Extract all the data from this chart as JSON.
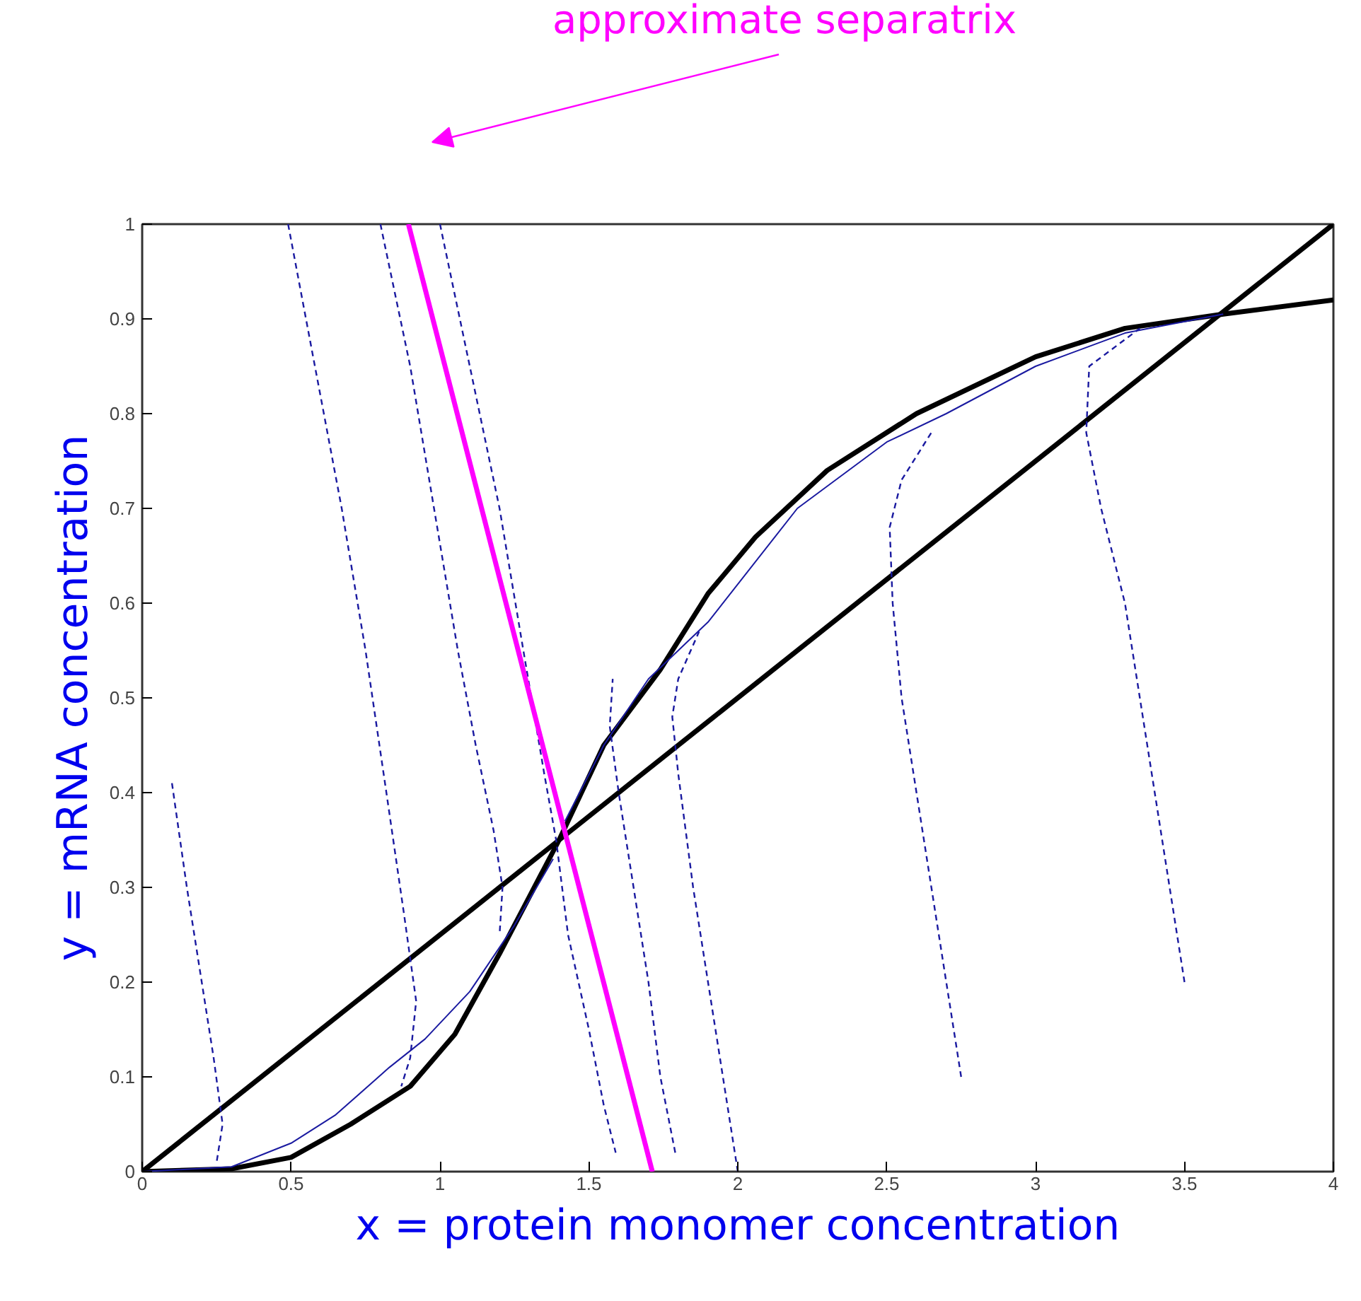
{
  "chart_data": {
    "type": "line",
    "xlabel": "x = protein monomer concentration",
    "ylabel": "y = mRNA concentration",
    "xlim": [
      0,
      4
    ],
    "ylim": [
      0,
      1
    ],
    "xticks": [
      0,
      0.5,
      1,
      1.5,
      2,
      2.5,
      3,
      3.5,
      4
    ],
    "yticks": [
      0,
      0.1,
      0.2,
      0.3,
      0.4,
      0.5,
      0.6,
      0.7,
      0.8,
      0.9,
      1
    ],
    "grid": false,
    "marker": "none",
    "annotations": [
      "approximate separatrix"
    ],
    "series": [
      {
        "color": "#000000",
        "line_style": "solid",
        "x": [
          0,
          4
        ],
        "values": [
          0,
          1
        ]
      },
      {
        "color": "#000000",
        "line_style": "solid",
        "x": [
          0,
          0.3,
          0.5,
          0.7,
          0.9,
          1.05,
          1.2,
          1.4,
          1.55,
          1.74,
          1.9,
          2.06,
          2.3,
          2.6,
          3.0,
          3.3,
          3.63,
          4.0
        ],
        "values": [
          0,
          0.003,
          0.015,
          0.05,
          0.09,
          0.145,
          0.23,
          0.35,
          0.45,
          0.53,
          0.61,
          0.67,
          0.74,
          0.8,
          0.86,
          0.89,
          0.905,
          0.92
        ]
      },
      {
        "color": "#1a1aa0",
        "line_style": "solid",
        "x": [
          1.38,
          1.25,
          1.1,
          0.95,
          0.83,
          0.65,
          0.5,
          0.3,
          0
        ],
        "values": [
          0.33,
          0.26,
          0.19,
          0.14,
          0.11,
          0.06,
          0.03,
          0.005,
          0
        ]
      },
      {
        "color": "#1a1aa0",
        "line_style": "solid",
        "x": [
          1.42,
          1.55,
          1.7,
          1.9,
          2.2,
          2.5,
          2.7,
          3.0,
          3.3,
          3.63
        ],
        "values": [
          0.37,
          0.45,
          0.52,
          0.58,
          0.7,
          0.77,
          0.8,
          0.85,
          0.885,
          0.905
        ]
      },
      {
        "color": "#1a1aa0",
        "line_style": "dashed",
        "x": [
          0.1,
          0.15,
          0.2,
          0.24,
          0.27,
          0.25
        ],
        "values": [
          0.41,
          0.3,
          0.2,
          0.12,
          0.05,
          0.01
        ]
      },
      {
        "color": "#1a1aa0",
        "line_style": "dashed",
        "x": [
          0.49,
          0.58,
          0.67,
          0.75,
          0.82,
          0.88,
          0.92,
          0.9,
          0.87
        ],
        "values": [
          1,
          0.85,
          0.7,
          0.55,
          0.4,
          0.27,
          0.18,
          0.12,
          0.09
        ]
      },
      {
        "color": "#1a1aa0",
        "line_style": "dashed",
        "x": [
          0.8,
          0.9,
          0.98,
          1.06,
          1.12,
          1.18,
          1.21,
          1.2
        ],
        "values": [
          1,
          0.85,
          0.7,
          0.55,
          0.45,
          0.36,
          0.3,
          0.25
        ]
      },
      {
        "color": "#1a1aa0",
        "line_style": "dashed",
        "x": [
          1.0,
          1.1,
          1.2,
          1.28,
          1.35,
          1.39,
          1.43,
          1.5,
          1.55,
          1.59
        ],
        "values": [
          1,
          0.85,
          0.7,
          0.55,
          0.42,
          0.35,
          0.25,
          0.15,
          0.07,
          0.02
        ]
      },
      {
        "color": "#1a1aa0",
        "line_style": "dashed",
        "x": [
          1.79,
          1.74,
          1.7,
          1.65,
          1.6,
          1.57,
          1.58
        ],
        "values": [
          0.02,
          0.1,
          0.2,
          0.3,
          0.4,
          0.47,
          0.52
        ]
      },
      {
        "color": "#1a1aa0",
        "line_style": "dashed",
        "x": [
          2.0,
          1.95,
          1.9,
          1.85,
          1.8,
          1.78,
          1.8,
          1.87
        ],
        "values": [
          0,
          0.1,
          0.2,
          0.3,
          0.42,
          0.48,
          0.52,
          0.57
        ]
      },
      {
        "color": "#1a1aa0",
        "line_style": "dashed",
        "x": [
          2.75,
          2.7,
          2.65,
          2.6,
          2.55,
          2.52,
          2.51,
          2.55,
          2.65
        ],
        "values": [
          0.1,
          0.2,
          0.3,
          0.4,
          0.5,
          0.6,
          0.68,
          0.73,
          0.78
        ]
      },
      {
        "color": "#1a1aa0",
        "line_style": "dashed",
        "x": [
          3.5,
          3.45,
          3.4,
          3.35,
          3.3,
          3.22,
          3.17,
          3.18,
          3.35
        ],
        "values": [
          0.2,
          0.3,
          0.4,
          0.5,
          0.6,
          0.7,
          0.78,
          0.85,
          0.89
        ]
      },
      {
        "color": "#ff00ff",
        "line_style": "solid",
        "x": [
          0.894,
          1.713
        ],
        "values": [
          1,
          0
        ]
      }
    ]
  }
}
